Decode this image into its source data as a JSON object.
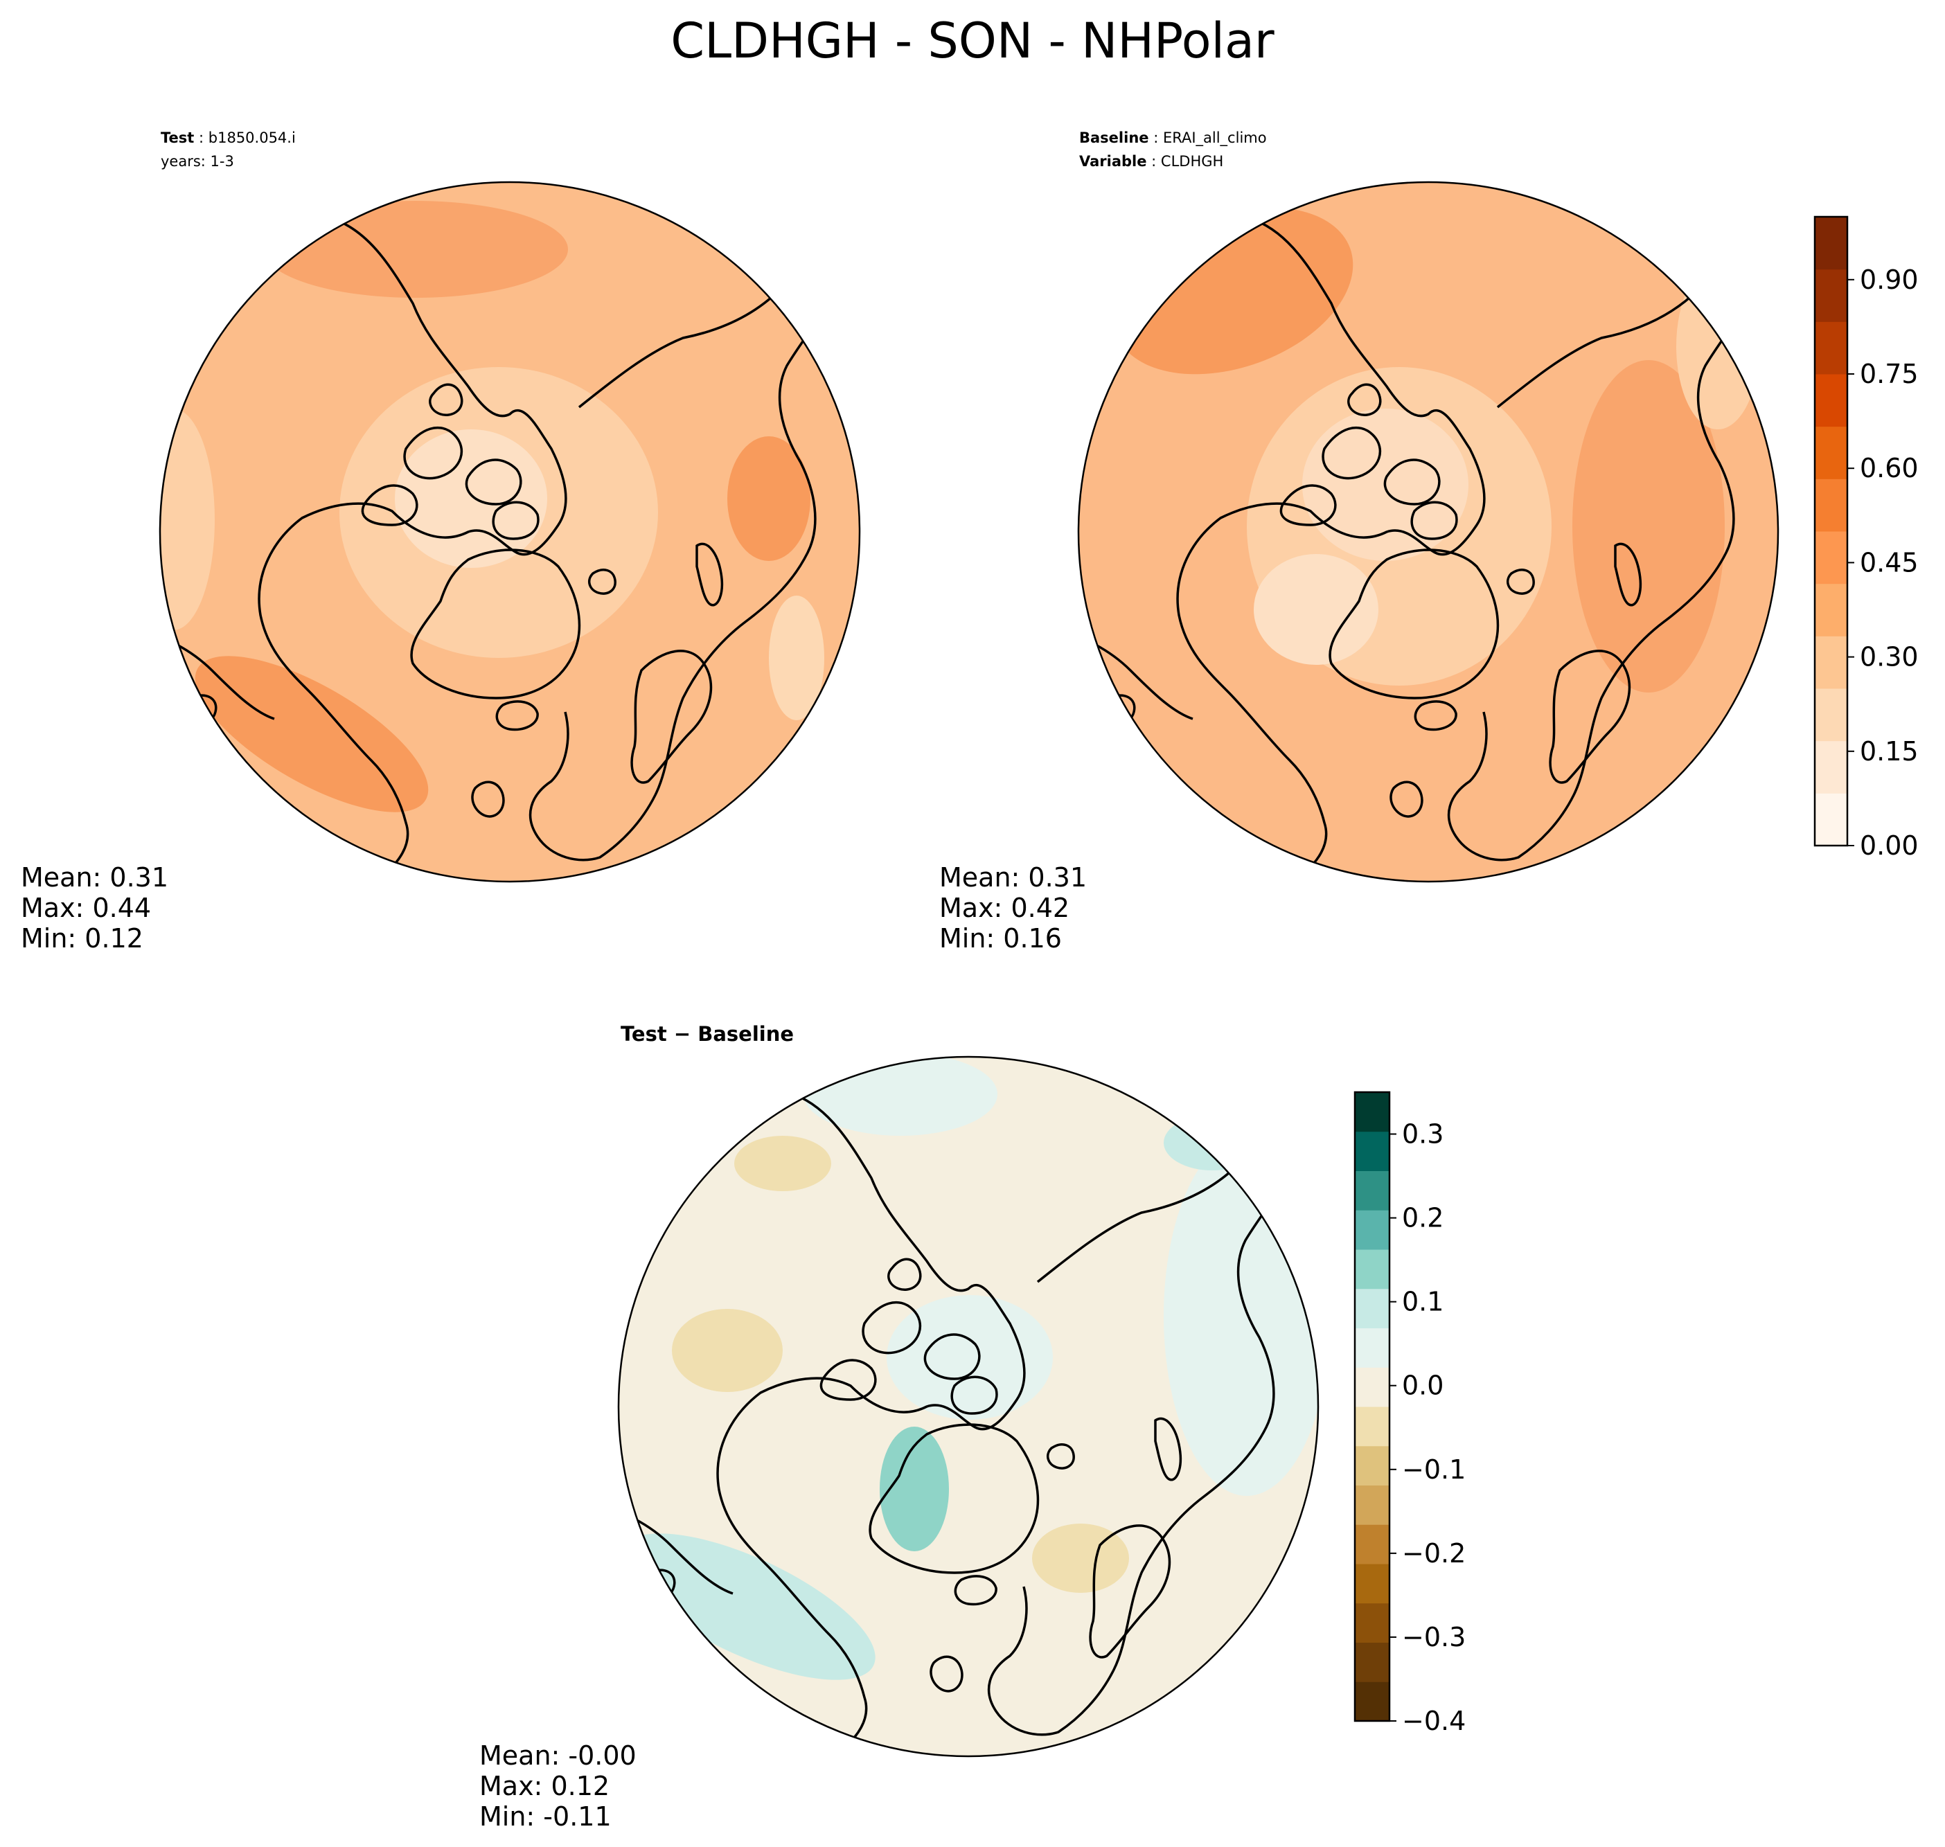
{
  "figure": {
    "title": "CLDHGH - SON - NHPolar"
  },
  "panels": {
    "test": {
      "header_label": "Test",
      "header_value": "b1850.054.i",
      "years_line": "years: 1-3",
      "stats": {
        "mean": "Mean:  0.31",
        "max": "Max:  0.44",
        "min": "Min:  0.12"
      }
    },
    "baseline": {
      "header_label": "Baseline",
      "header_value": "ERAI_all_climo",
      "variable_label": "Variable",
      "variable_value": "CLDHGH",
      "stats": {
        "mean": "Mean:  0.31",
        "max": "Max:  0.42",
        "min": "Min:  0.16"
      }
    },
    "diff": {
      "title": "Test − Baseline",
      "stats": {
        "mean": "Mean: -0.00",
        "max": "Max:  0.12",
        "min": "Min: -0.11"
      }
    }
  },
  "colorbars": {
    "main": {
      "range": [
        0.0,
        1.0
      ],
      "ticks": [
        "0.00",
        "0.15",
        "0.30",
        "0.45",
        "0.60",
        "0.75",
        "0.90"
      ],
      "tick_values": [
        0.0,
        0.15,
        0.3,
        0.45,
        0.6,
        0.75,
        0.9
      ],
      "colors": [
        "#fff5eb",
        "#fee8d3",
        "#fdd9b4",
        "#fdc692",
        "#fdae6b",
        "#fd9750",
        "#f57f30",
        "#e8650f",
        "#d94801",
        "#b93d02",
        "#993003",
        "#7f2704"
      ]
    },
    "diff": {
      "range": [
        -0.4,
        0.35
      ],
      "ticks": [
        "0.3",
        "0.2",
        "0.1",
        "0.0",
        "−0.1",
        "−0.2",
        "−0.3",
        "−0.4"
      ],
      "tick_values": [
        0.3,
        0.2,
        0.1,
        0.0,
        -0.1,
        -0.2,
        -0.3,
        -0.4
      ],
      "colors": [
        "#543005",
        "#6f3f08",
        "#8c510a",
        "#a8690f",
        "#bf812d",
        "#d2a659",
        "#dfc27d",
        "#f0dfb0",
        "#f5efdf",
        "#e5f3ef",
        "#c7eae5",
        "#8fd4c7",
        "#5ab4ac",
        "#2e9185",
        "#01665e",
        "#003c30"
      ]
    }
  },
  "map_colors": {
    "test_base": "#fcbd8a",
    "baseline_base": "#fcba87",
    "diff_base": "#f5efdf",
    "coastline": "#000000"
  }
}
